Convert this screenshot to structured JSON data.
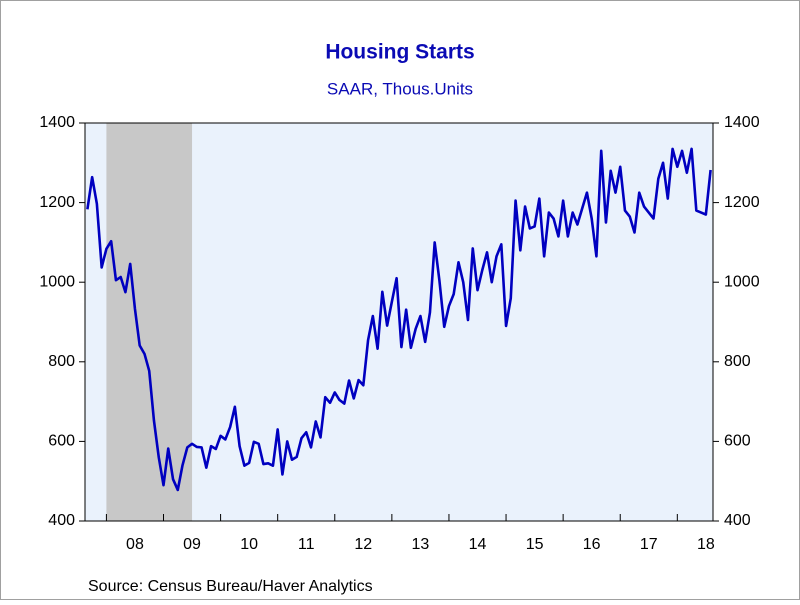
{
  "chart_data": {
    "type": "line",
    "title": "Housing Starts",
    "subtitle": "SAAR, Thous.Units",
    "source": "Source:  Census Bureau/Haver Analytics",
    "color": "#0000c0",
    "recession": [
      2008.0,
      2009.5
    ],
    "xlim": [
      2007.625,
      2018.625
    ],
    "ylim": [
      400,
      1400
    ],
    "yticks": [
      400,
      600,
      800,
      1000,
      1200,
      1400
    ],
    "xticks": [
      {
        "value": 2008.5,
        "label": "08"
      },
      {
        "value": 2009.5,
        "label": "09"
      },
      {
        "value": 2010.5,
        "label": "10"
      },
      {
        "value": 2011.5,
        "label": "11"
      },
      {
        "value": 2012.5,
        "label": "12"
      },
      {
        "value": 2013.5,
        "label": "13"
      },
      {
        "value": 2014.5,
        "label": "14"
      },
      {
        "value": 2015.5,
        "label": "15"
      },
      {
        "value": 2016.5,
        "label": "16"
      },
      {
        "value": 2017.5,
        "label": "17"
      },
      {
        "value": 2018.5,
        "label": "18"
      }
    ],
    "x": [
      2007.667,
      2007.75,
      2007.833,
      2007.917,
      2008.0,
      2008.083,
      2008.167,
      2008.25,
      2008.333,
      2008.417,
      2008.5,
      2008.583,
      2008.667,
      2008.75,
      2008.833,
      2008.917,
      2009.0,
      2009.083,
      2009.167,
      2009.25,
      2009.333,
      2009.417,
      2009.5,
      2009.583,
      2009.667,
      2009.75,
      2009.833,
      2009.917,
      2010.0,
      2010.083,
      2010.167,
      2010.25,
      2010.333,
      2010.417,
      2010.5,
      2010.583,
      2010.667,
      2010.75,
      2010.833,
      2010.917,
      2011.0,
      2011.083,
      2011.167,
      2011.25,
      2011.333,
      2011.417,
      2011.5,
      2011.583,
      2011.667,
      2011.75,
      2011.833,
      2011.917,
      2012.0,
      2012.083,
      2012.167,
      2012.25,
      2012.333,
      2012.417,
      2012.5,
      2012.583,
      2012.667,
      2012.75,
      2012.833,
      2012.917,
      2013.0,
      2013.083,
      2013.167,
      2013.25,
      2013.333,
      2013.417,
      2013.5,
      2013.583,
      2013.667,
      2013.75,
      2013.833,
      2013.917,
      2014.0,
      2014.083,
      2014.167,
      2014.25,
      2014.333,
      2014.417,
      2014.5,
      2014.583,
      2014.667,
      2014.75,
      2014.833,
      2014.917,
      2015.0,
      2015.083,
      2015.167,
      2015.25,
      2015.333,
      2015.417,
      2015.5,
      2015.583,
      2015.667,
      2015.75,
      2015.833,
      2015.917,
      2016.0,
      2016.083,
      2016.167,
      2016.25,
      2016.333,
      2016.417,
      2016.5,
      2016.583,
      2016.667,
      2016.75,
      2016.833,
      2016.917,
      2017.0,
      2017.083,
      2017.167,
      2017.25,
      2017.333,
      2017.417,
      2017.5,
      2017.583,
      2017.667,
      2017.75,
      2017.833,
      2017.917,
      2018.0,
      2018.083,
      2018.167,
      2018.25,
      2018.333,
      2018.417,
      2018.5,
      2018.583
    ],
    "values": [
      1183,
      1264,
      1197,
      1037,
      1084,
      1103,
      1005,
      1013,
      975,
      1046,
      933,
      841,
      820,
      777,
      652,
      560,
      490,
      582,
      505,
      478,
      540,
      585,
      594,
      586,
      585,
      534,
      588,
      581,
      614,
      605,
      636,
      687,
      588,
      539,
      546,
      599,
      594,
      543,
      545,
      539,
      630,
      517,
      600,
      554,
      561,
      608,
      623,
      585,
      650,
      610,
      711,
      697,
      723,
      704,
      695,
      753,
      708,
      754,
      741,
      854,
      915,
      833,
      976,
      891,
      951,
      1010,
      837,
      931,
      835,
      883,
      915,
      850,
      924,
      1100,
      1004,
      888,
      940,
      970,
      1050,
      1000,
      905,
      1085,
      980,
      1030,
      1075,
      1000,
      1065,
      1095,
      890,
      960,
      1205,
      1080,
      1190,
      1135,
      1140,
      1210,
      1065,
      1175,
      1160,
      1115,
      1205,
      1115,
      1175,
      1145,
      1185,
      1225,
      1160,
      1065,
      1330,
      1150,
      1280,
      1225,
      1290,
      1180,
      1165,
      1125,
      1225,
      1190,
      1175,
      1160,
      1260,
      1300,
      1210,
      1335,
      1290,
      1330,
      1275,
      1335,
      1180,
      1175,
      1170,
      1282
    ]
  }
}
